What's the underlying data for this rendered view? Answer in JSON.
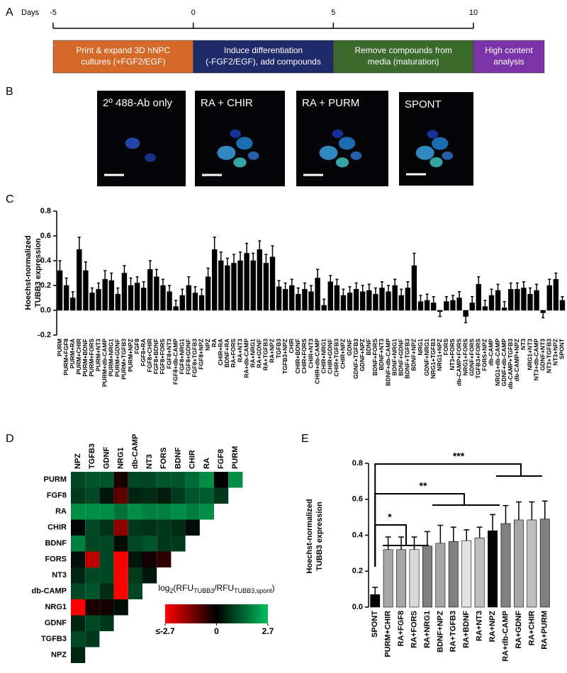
{
  "panel_a": {
    "label": "A",
    "axis_label": "Days",
    "days": [
      -5,
      0,
      5,
      10
    ],
    "stages": [
      [
        "Print & expand 3D hNPC",
        "cultures (+FGF2/EGF)"
      ],
      [
        "Induce differentiation",
        "(-FGF2/EGF), add compounds"
      ],
      [
        "Remove compounds from",
        "media (maturation)"
      ],
      [
        "High content",
        "analysis"
      ]
    ],
    "stage_colors": [
      "#d4692a",
      "#1f2a6b",
      "#3b6a2c",
      "#7a34a8"
    ]
  },
  "panel_b": {
    "label": "B",
    "images": [
      "2º 488-Ab only",
      "RA + CHIR",
      "RA + PURM",
      "SPONT"
    ]
  },
  "chart_data": [
    {
      "type": "bar",
      "panel": "C",
      "ylabel": [
        "Hoechst-normalized",
        "TUBB3 expression"
      ],
      "color": "#000000",
      "ylim": [
        -0.2,
        0.8
      ],
      "yticks": [
        -0.2,
        {
          "value": 0,
          "label": "0.0"
        },
        0.2,
        0.4,
        0.6,
        0.8
      ],
      "categories": [
        "PURM",
        "PURM+FGF8",
        "PURM+RA",
        "PURM+CHIR",
        "PURM+BDNF",
        "PURM+FORS",
        "PURM+NT3",
        "PURM+db-CAMP",
        "PURM+NRG1",
        "PURM+GDNF",
        "PURM+TGFB3",
        "PURM+NPZ",
        "FGF8",
        "FGF8+RA",
        "FGF8+CHIR",
        "FGF8+BDNF",
        "FGF8+FORS",
        "FGF8+NT3",
        "FGF8+db-CAMP",
        "FGF8+NRG1",
        "FGF8+GDNF",
        "FGF8+TGFB3",
        "FGF8+NPZ",
        "NPZ",
        "RA",
        "CHIR+RA",
        "BDNF+RA",
        "RA+FORS",
        "RA+NT3",
        "RA+db-CAMP",
        "RA+NRG1",
        "RA+GDNF",
        "RA+TGFB3",
        "RA+NPZ",
        "TGFB3",
        "TGFB3+NPZ",
        "CHIR",
        "CHIR+BDNF",
        "CHIR+FORS",
        "CHIR+NT3",
        "CHIR+db-CAMP",
        "CHIR+NRG1",
        "CHIR+GDNF",
        "CHIR+TGFB3",
        "CHIR+NPZ",
        "GDNF",
        "GDNF+TGFB3",
        "GDNF+NPZ",
        "BDNF",
        "BDNF+FORS",
        "BDNF+NT3",
        "BDNF+db-CAMP",
        "BDNF+NRG1",
        "BDNF+GDNF",
        "BDNF+TGFB3",
        "BDNF+NPZ",
        "NRG1",
        "GDNF+NRG1",
        "NRG1+TGFB3",
        "NRG1+NPZ",
        "FORS",
        "NT3+FORS",
        "db-CAMP+FORS",
        "NRG1+FORS",
        "GDNF+FORS",
        "TGFB3+FORS",
        "FORS+NPZ",
        "db-CAMP",
        "NRG1+db-CAMP",
        "GDNF+db-CAMP",
        "db-CAMP+TGFB3",
        "db-CAMP+NPZ",
        "NT3",
        "NRG1+NT3",
        "NT3+db-CAMP",
        "GDNF+NT3",
        "NT3+TGFB3",
        "NT3+NPZ",
        "SPONT"
      ],
      "values": [
        0.32,
        0.2,
        0.1,
        0.49,
        0.32,
        0.14,
        0.17,
        0.25,
        0.24,
        0.13,
        0.3,
        0.2,
        0.22,
        0.18,
        0.33,
        0.27,
        0.2,
        0.15,
        0.03,
        0.12,
        0.2,
        0.14,
        0.12,
        0.27,
        0.49,
        0.4,
        0.36,
        0.38,
        0.4,
        0.46,
        0.4,
        0.49,
        0.38,
        0.43,
        0.19,
        0.17,
        0.2,
        0.13,
        0.17,
        0.15,
        0.26,
        0.04,
        0.23,
        0.2,
        0.12,
        0.14,
        0.17,
        0.15,
        0.16,
        0.13,
        0.18,
        0.15,
        0.2,
        0.12,
        0.18,
        0.36,
        0.07,
        0.08,
        0.06,
        -0.01,
        0.07,
        0.08,
        0.1,
        -0.05,
        0.06,
        0.21,
        0.03,
        0.12,
        0.16,
        0.02,
        0.17,
        0.17,
        0.18,
        0.13,
        0.16,
        -0.02,
        0.2,
        0.25,
        0.08
      ],
      "errors": [
        0.08,
        0.06,
        0.05,
        0.1,
        0.07,
        0.04,
        0.05,
        0.07,
        0.06,
        0.05,
        0.06,
        0.06,
        0.05,
        0.05,
        0.07,
        0.06,
        0.05,
        0.05,
        0.05,
        0.05,
        0.07,
        0.05,
        0.05,
        0.07,
        0.1,
        0.07,
        0.06,
        0.07,
        0.07,
        0.08,
        0.06,
        0.07,
        0.07,
        0.09,
        0.05,
        0.05,
        0.05,
        0.05,
        0.05,
        0.05,
        0.07,
        0.05,
        0.05,
        0.05,
        0.05,
        0.05,
        0.05,
        0.05,
        0.05,
        0.05,
        0.05,
        0.05,
        0.05,
        0.05,
        0.05,
        0.1,
        0.05,
        0.05,
        0.05,
        0.04,
        0.04,
        0.04,
        0.05,
        0.05,
        0.05,
        0.06,
        0.05,
        0.05,
        0.05,
        0.05,
        0.05,
        0.05,
        0.05,
        0.05,
        0.05,
        0.04,
        0.05,
        0.05,
        0.03
      ]
    },
    {
      "type": "heatmap",
      "panel": "D",
      "columns": [
        "NPZ",
        "TGFB3",
        "GDNF",
        "NRG1",
        "db-CAMP",
        "NT3",
        "FORS",
        "BDNF",
        "CHIR",
        "RA",
        "FGF8",
        "PURM"
      ],
      "rows": [
        {
          "name": "PURM",
          "values": [
            1,
            1.2,
            1.2,
            -0.3,
            1,
            1,
            1.2,
            1.2,
            1.5,
            2,
            0,
            2
          ]
        },
        {
          "name": "FGF8",
          "values": [
            0.8,
            1,
            0.3,
            -1,
            0.5,
            0.6,
            0.4,
            0.8,
            1.2,
            1.3,
            0.8
          ]
        },
        {
          "name": "RA",
          "values": [
            2,
            2,
            2,
            1.6,
            2,
            1.8,
            1.8,
            2,
            1.8,
            2
          ]
        },
        {
          "name": "CHIR",
          "values": [
            0.1,
            1,
            0.7,
            -1.5,
            0.8,
            0.7,
            0.8,
            0.6,
            0.2
          ]
        },
        {
          "name": "BDNF",
          "values": [
            1.8,
            1,
            1,
            0.2,
            1,
            1.2,
            0.8,
            0.8
          ]
        },
        {
          "name": "FORS",
          "values": [
            0.2,
            -2,
            1,
            -2.7,
            0.3,
            -0.2,
            -0.5
          ]
        },
        {
          "name": "NT3",
          "values": [
            0.5,
            1,
            1,
            -2.7,
            0.8,
            0.3
          ]
        },
        {
          "name": "db-CAMP",
          "values": [
            1,
            1.2,
            0.6,
            -2.7,
            1
          ]
        },
        {
          "name": "NRG1",
          "values": [
            -2.7,
            -0.3,
            -0.2,
            0.2
          ]
        },
        {
          "name": "GDNF",
          "values": [
            0.5,
            1,
            0.8
          ]
        },
        {
          "name": "TGFB3",
          "values": [
            1,
            0.8
          ]
        },
        {
          "name": "NPZ",
          "values": [
            0.5
          ]
        }
      ],
      "zlim": [
        -2.7,
        2.7
      ],
      "colors": [
        "#ff0000",
        "#000000",
        "#00c060"
      ],
      "colorbar_label": [
        "log",
        "2",
        "(RFU",
        "TUBB3",
        "/RFU",
        "TUBB3,spont",
        ")"
      ],
      "colorbar_ticks": [
        {
          "value": -2.7,
          "label": "≤-2.7"
        },
        0,
        2.7
      ]
    },
    {
      "type": "bar",
      "panel": "E",
      "ylabel": [
        "Hoechst-normalized",
        "TUBB3 expression"
      ],
      "ylim": [
        0,
        0.8
      ],
      "yticks": [
        {
          "value": 0,
          "label": "0.0"
        },
        0.2,
        0.4,
        0.6,
        0.8
      ],
      "categories": [
        "SPONT",
        "PURM+CHIR",
        "RA+FGF8",
        "RA+FORS",
        "RA+NRG1",
        "BDNF+NPZ",
        "RA+TGFB3",
        "RA+BDNF",
        "RA+NT3",
        "RA+NPZ",
        "RA+db-CAMP",
        "RA+GDNF",
        "RA+CHIR",
        "RA+PURM"
      ],
      "values": [
        0.07,
        0.32,
        0.32,
        0.32,
        0.34,
        0.355,
        0.365,
        0.37,
        0.385,
        0.425,
        0.465,
        0.485,
        0.485,
        0.49
      ],
      "errors": [
        0.04,
        0.07,
        0.07,
        0.07,
        0.08,
        0.1,
        0.08,
        0.06,
        0.06,
        0.09,
        0.1,
        0.1,
        0.1,
        0.1
      ],
      "colors": [
        "#000000",
        "#a6a6a6",
        "#a6a6a6",
        "#d9d9d9",
        "#808080",
        "#a6a6a6",
        "#808080",
        "#e3e3e3",
        "#bfbfbf",
        "#000000",
        "#808080",
        "#a6a6a6",
        "#bfbfbf",
        "#808080"
      ],
      "annotations": [
        "*",
        "**",
        "***"
      ]
    }
  ]
}
